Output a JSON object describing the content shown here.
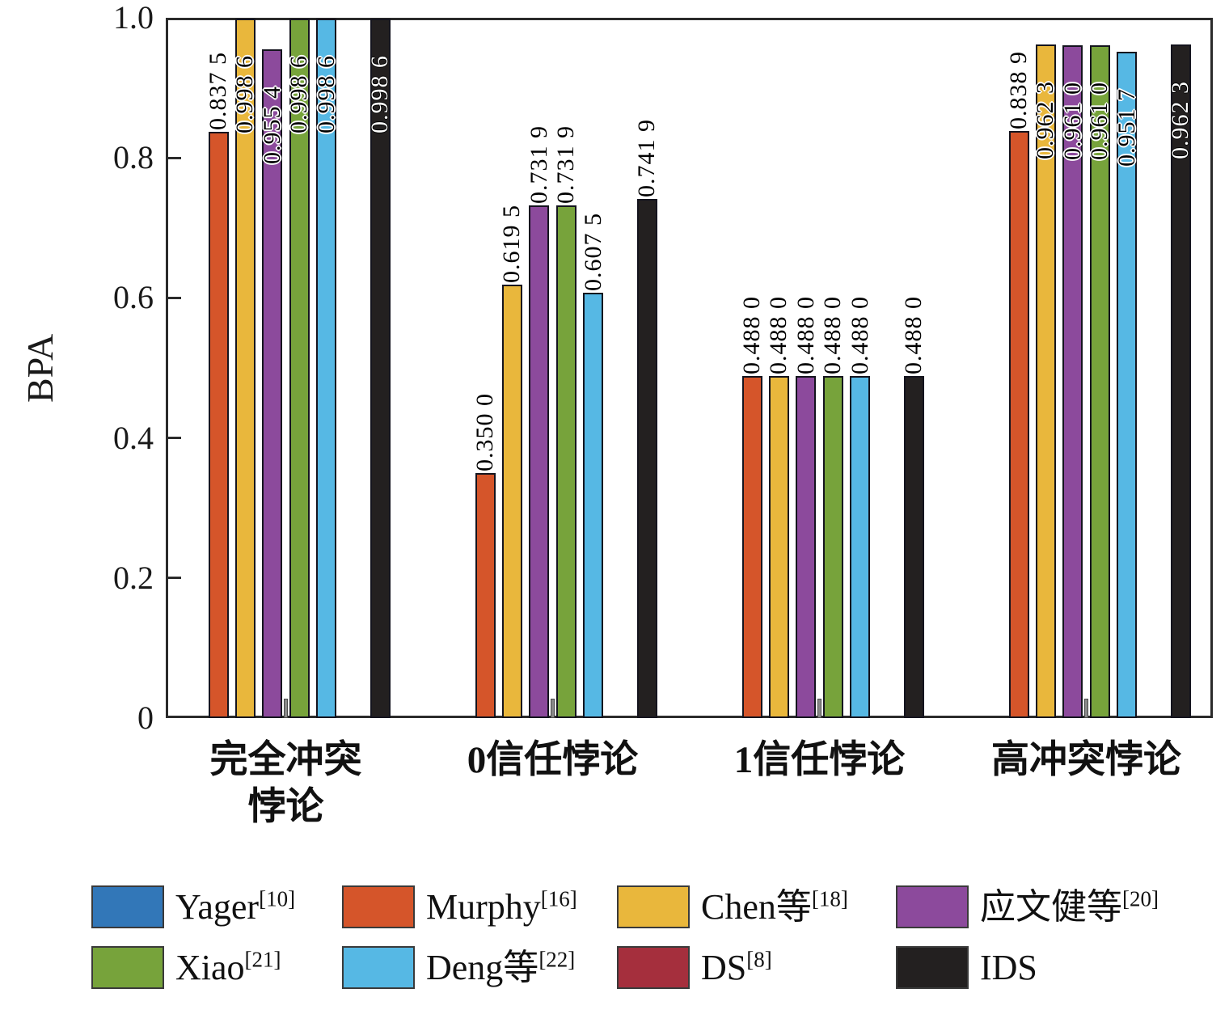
{
  "chart_data": {
    "type": "bar",
    "title": "",
    "xlabel": "",
    "ylabel": "BPA",
    "ylim": [
      0,
      1.0
    ],
    "yticks": [
      {
        "value": 0,
        "label": "0"
      },
      {
        "value": 0.2,
        "label": "0.2"
      },
      {
        "value": 0.4,
        "label": "0.4"
      },
      {
        "value": 0.6,
        "label": "0.6"
      },
      {
        "value": 0.8,
        "label": "0.8"
      },
      {
        "value": 1.0,
        "label": "1.0"
      }
    ],
    "categories": [
      "完全冲突悖论",
      "0信任悖论",
      "1信任悖论",
      "高冲突悖论"
    ],
    "category_display_lines": [
      [
        "完全冲突",
        "悖论"
      ],
      [
        "0信任悖论"
      ],
      [
        "1信任悖论"
      ],
      [
        "高冲突悖论"
      ]
    ],
    "grid": false,
    "legend_position": "bottom",
    "series": [
      {
        "name": "Yager",
        "ref": "[10]",
        "color": "#3277b8",
        "values": [
          0,
          0,
          0,
          0
        ],
        "labels": [
          "",
          "",
          "",
          ""
        ]
      },
      {
        "name": "Murphy",
        "ref": "[16]",
        "color": "#d5552a",
        "values": [
          0.8375,
          0.35,
          0.488,
          0.8389
        ],
        "labels": [
          "0.837 5",
          "0.350 0",
          "0.488 0",
          "0.838 9"
        ]
      },
      {
        "name": "Chen等",
        "ref": "[18]",
        "color": "#e9b73c",
        "values": [
          0.9986,
          0.6195,
          0.488,
          0.9623
        ],
        "labels": [
          "0.998 6",
          "0.619 5",
          "0.488 0",
          "0.962 3"
        ]
      },
      {
        "name": "应文健等",
        "ref": "[20]",
        "color": "#8c4a9c",
        "values": [
          0.9554,
          0.7319,
          0.488,
          0.961
        ],
        "labels": [
          "0.955 4",
          "0.731 9",
          "0.488 0",
          "0.961 0"
        ]
      },
      {
        "name": "Xiao",
        "ref": "[21]",
        "color": "#77a33b",
        "values": [
          0.9986,
          0.7319,
          0.488,
          0.961
        ],
        "labels": [
          "0.998 6",
          "0.731 9",
          "0.488 0",
          "0.961 0"
        ]
      },
      {
        "name": "Deng等",
        "ref": "[22]",
        "color": "#56b8e4",
        "values": [
          0.9986,
          0.6075,
          0.488,
          0.9517
        ],
        "labels": [
          "0.998 6",
          "0.607 5",
          "0.488 0",
          "0.951 7"
        ]
      },
      {
        "name": "DS",
        "ref": "[8]",
        "color": "#a52f3d",
        "values": [
          0,
          0,
          0,
          0
        ],
        "labels": [
          "",
          "",
          "",
          ""
        ]
      },
      {
        "name": "IDS",
        "ref": "",
        "color": "#232020",
        "values": [
          0.9986,
          0.7419,
          0.488,
          0.9623
        ],
        "labels": [
          "0.998 6",
          "0.741 9",
          "0.488 0",
          "0.962 3"
        ]
      }
    ],
    "tiny_gray_bar": {
      "note": "thin unlabeled gray sliver drawn between 应文健等 and Xiao bars in every group",
      "approx_value": 0.028,
      "color": "#8a8a8a",
      "groups": [
        0,
        1,
        2,
        3
      ]
    }
  }
}
